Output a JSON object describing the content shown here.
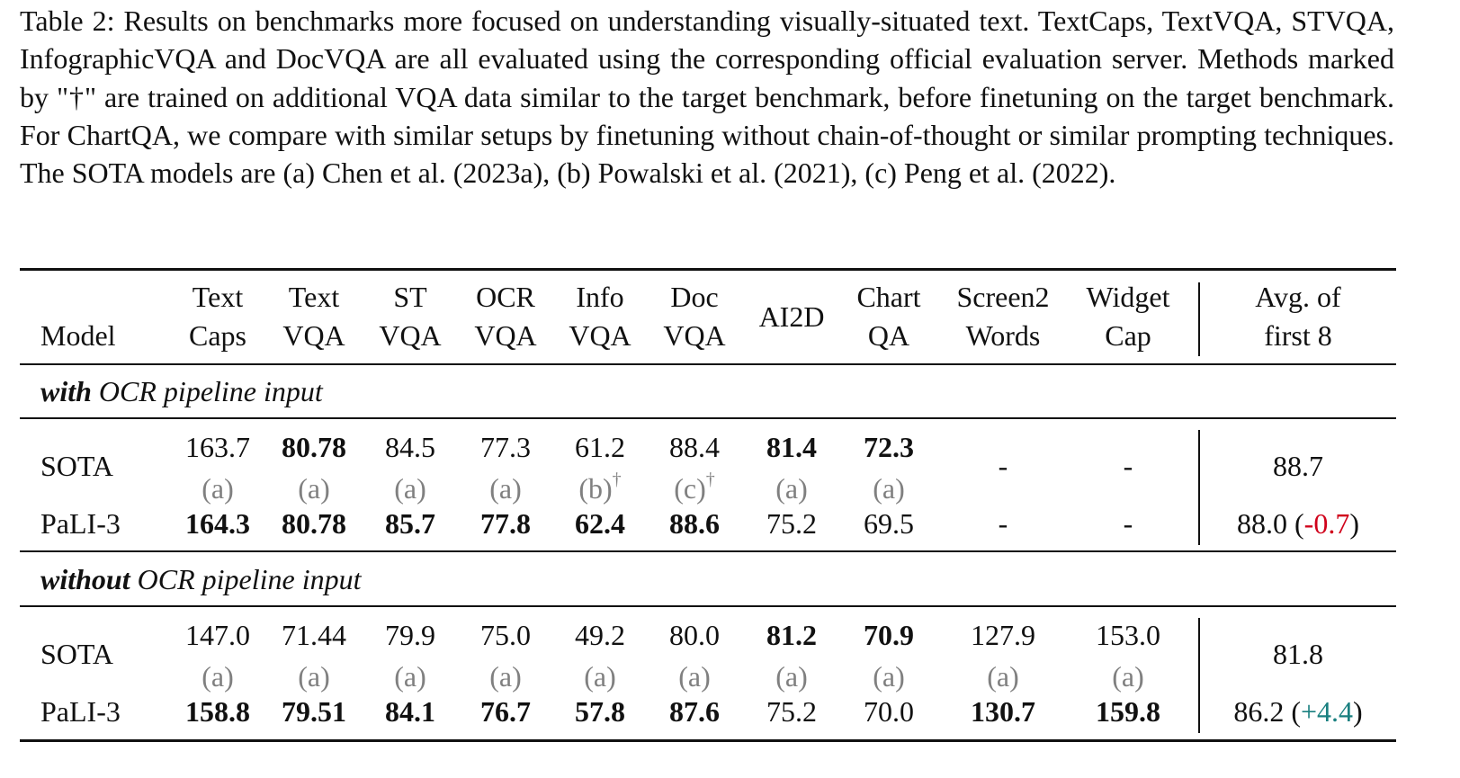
{
  "caption": {
    "label": "Table 2:",
    "text": "Results on benchmarks more focused on understanding visually-situated text. TextCaps, TextVQA, STVQA, InfographicVQA and DocVQA are all evaluated using the corresponding official evaluation server. Methods marked by \"†\" are trained on additional VQA data similar to the target benchmark, before finetuning on the target benchmark. For ChartQA, we compare with similar setups by finetuning without chain-of-thought or similar prompting techniques. The SOTA models are (a) Chen et al. (2023a), (b) Powalski et al. (2021), (c) Peng et al. (2022)."
  },
  "header": {
    "model": "Model",
    "columns": [
      {
        "l1": "Text",
        "l2": "Caps"
      },
      {
        "l1": "Text",
        "l2": "VQA"
      },
      {
        "l1": "ST",
        "l2": "VQA"
      },
      {
        "l1": "OCR",
        "l2": "VQA"
      },
      {
        "l1": "Info",
        "l2": "VQA"
      },
      {
        "l1": "Doc",
        "l2": "VQA"
      },
      {
        "l1": "AI2D",
        "l2": ""
      },
      {
        "l1": "Chart",
        "l2": "QA"
      },
      {
        "l1": "Screen2",
        "l2": "Words"
      },
      {
        "l1": "Widget",
        "l2": "Cap"
      }
    ],
    "avg_l1": "Avg. of",
    "avg_l2": "first 8"
  },
  "sections": [
    {
      "title_bold": "with",
      "title_rest": " OCR pipeline input",
      "sota": {
        "label": "SOTA",
        "values": [
          "163.7",
          "80.78",
          "84.5",
          "77.3",
          "61.2",
          "88.4",
          "81.4",
          "72.3",
          "-",
          "-"
        ],
        "sources": [
          "(a)",
          "(a)",
          "(a)",
          "(a)",
          "(b)",
          "(c)",
          "(a)",
          "(a)",
          "",
          ""
        ],
        "dagger": [
          "",
          "",
          "",
          "",
          "†",
          "†",
          "",
          "",
          "",
          ""
        ],
        "avg": "88.7"
      },
      "pali": {
        "label": "PaLI-3",
        "values": [
          "164.3",
          "80.78",
          "85.7",
          "77.8",
          "62.4",
          "88.6",
          "75.2",
          "69.5",
          "-",
          "-"
        ],
        "avg": "88.0",
        "delta": "-0.7"
      }
    },
    {
      "title_bold": "without",
      "title_rest": " OCR pipeline input",
      "sota": {
        "label": "SOTA",
        "values": [
          "147.0",
          "71.44",
          "79.9",
          "75.0",
          "49.2",
          "80.0",
          "81.2",
          "70.9",
          "127.9",
          "153.0"
        ],
        "sources": [
          "(a)",
          "(a)",
          "(a)",
          "(a)",
          "(a)",
          "(a)",
          "(a)",
          "(a)",
          "(a)",
          "(a)"
        ],
        "dagger": [
          "",
          "",
          "",
          "",
          "",
          "",
          "",
          "",
          "",
          ""
        ],
        "avg": "81.8"
      },
      "pali": {
        "label": "PaLI-3",
        "values": [
          "158.8",
          "79.51",
          "84.1",
          "76.7",
          "57.8",
          "87.6",
          "75.2",
          "70.0",
          "130.7",
          "159.8"
        ],
        "avg": "86.2",
        "delta": "+4.4"
      }
    }
  ],
  "bold_cells": {
    "s0_sota": [
      1,
      6,
      7
    ],
    "s0_pali": [
      0,
      1,
      2,
      3,
      4,
      5
    ],
    "s1_sota": [
      6,
      7
    ],
    "s1_pali": [
      0,
      1,
      2,
      3,
      4,
      5,
      8,
      9
    ]
  }
}
